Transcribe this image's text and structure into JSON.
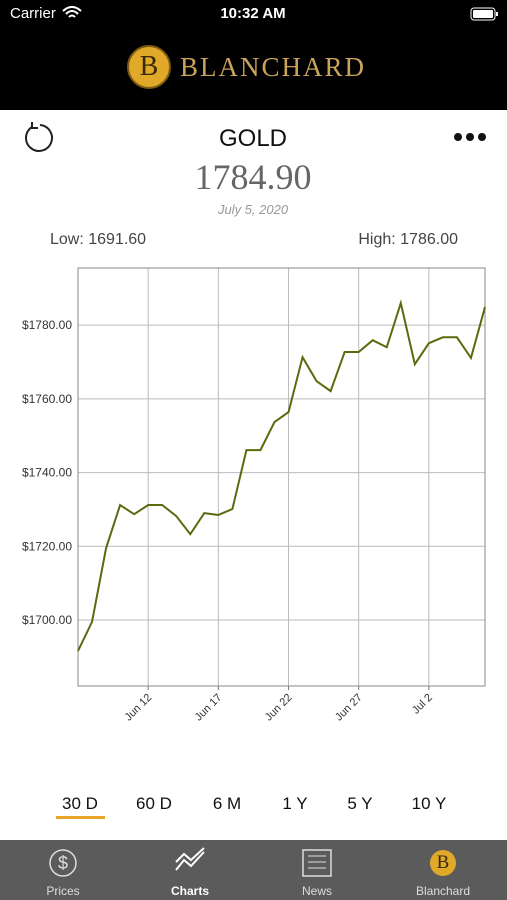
{
  "status_bar": {
    "carrier": "Carrier",
    "time": "10:32 AM"
  },
  "header": {
    "logo_letter": "B",
    "brand": "BLANCHARD"
  },
  "quote": {
    "symbol": "GOLD",
    "price": "1784.90",
    "date": "July 5, 2020",
    "low": "Low: 1691.60",
    "high": "High: 1786.00"
  },
  "chart_data": {
    "type": "line",
    "categories": [
      null,
      null,
      null,
      null,
      null,
      "Jun 12",
      null,
      null,
      null,
      null,
      "Jun 17",
      null,
      null,
      null,
      null,
      "Jun 22",
      null,
      null,
      null,
      null,
      "Jun 27",
      null,
      null,
      null,
      null,
      "Jul 2",
      null,
      null,
      null,
      null
    ],
    "series": [
      {
        "color": "#5a6b0f",
        "values": [
          1691.6,
          1699.5,
          1719.5,
          1731.2,
          1728.7,
          1731.2,
          1731.2,
          1728.2,
          1723.3,
          1729.0,
          1728.5,
          1730.1,
          1746.1,
          1746.1,
          1753.7,
          1756.4,
          1771.3,
          1764.8,
          1762.1,
          1772.7,
          1772.7,
          1775.9,
          1774.0,
          1786.0,
          1769.4,
          1775.1,
          1776.7,
          1776.7,
          1771.1,
          1784.9
        ]
      }
    ],
    "ylim": [
      1682.1,
      1795.5
    ],
    "yticks": [
      {
        "value": 1700,
        "label": "$1700.00"
      },
      {
        "value": 1720,
        "label": "$1720.00"
      },
      {
        "value": 1740,
        "label": "$1740.00"
      },
      {
        "value": 1760,
        "label": "$1760.00"
      },
      {
        "value": 1780,
        "label": "$1780.00"
      }
    ],
    "grid": true
  },
  "ranges": [
    "30 D",
    "60 D",
    "6 M",
    "1 Y",
    "5 Y",
    "10 Y"
  ],
  "tabs": [
    {
      "icon": "$",
      "label": "Prices"
    },
    {
      "label": "Charts"
    },
    {
      "label": "News"
    },
    {
      "icon": "B",
      "label": "Blanchard"
    }
  ]
}
